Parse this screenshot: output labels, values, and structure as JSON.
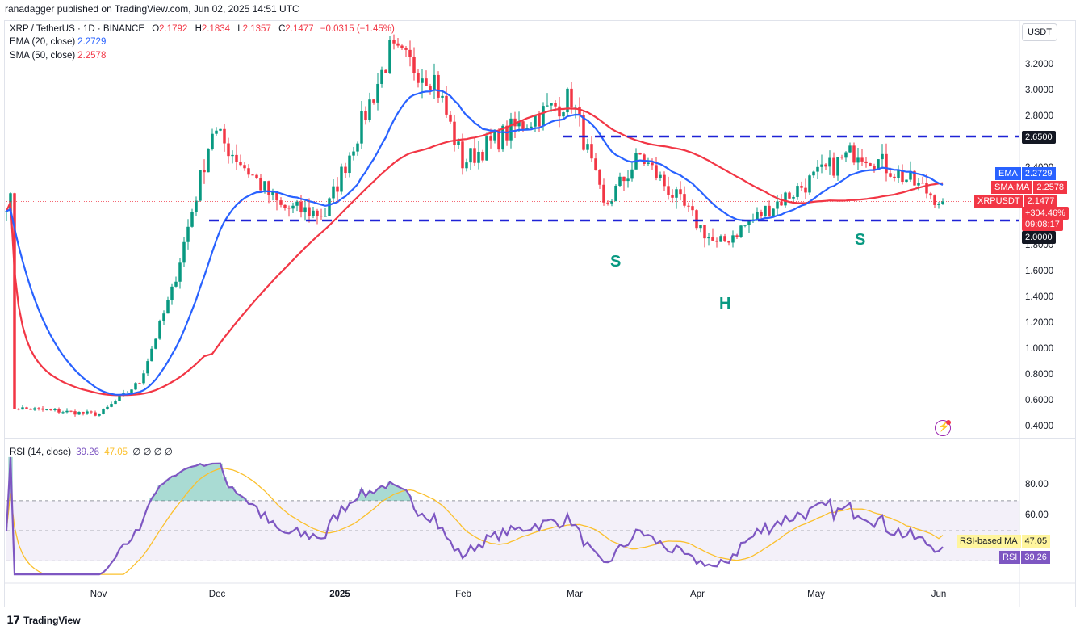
{
  "caption": "ranadagger published on TradingView.com, Jun 02, 2025 14:51 UTC",
  "symbol_line": "XRP / TetherUS · 1D · BINANCE",
  "ohlc": {
    "o_label": "O",
    "o": "2.1792",
    "h_label": "H",
    "h": "2.1834",
    "l_label": "L",
    "l": "2.1357",
    "c_label": "C",
    "c": "2.1477",
    "change": "−0.0315 (−1.45%)"
  },
  "ema_legend": {
    "label": "EMA (20, close)",
    "value": "2.2729"
  },
  "sma_legend": {
    "label": "SMA (50, close)",
    "value": "2.2578"
  },
  "rsi_legend": {
    "label": "RSI (14, close)",
    "v1": "39.26",
    "v2": "47.05",
    "rest": "∅ ∅ ∅ ∅"
  },
  "currency": "USDT",
  "price_ticks": [
    "3.2000",
    "3.0000",
    "2.8000",
    "2.4000",
    "1.8000",
    "1.6000",
    "1.4000",
    "1.2000",
    "1.0000",
    "0.8000",
    "0.6000",
    "0.4000"
  ],
  "rsi_ticks": [
    "80.00",
    "60.00"
  ],
  "tags": {
    "resistance": "2.6500",
    "support": "2.0000",
    "ema_name": "EMA",
    "ema_value": "2.2729",
    "sma_name": "SMA:MA",
    "sma_value": "2.2578",
    "sym_name": "XRPUSDT",
    "sym_value": "2.1477",
    "sym_change": "+304.46%",
    "sym_timer": "09:08:17",
    "rsi_ma_name": "RSI-based MA",
    "rsi_ma_value": "47.05",
    "rsi_name": "RSI",
    "rsi_value": "39.26"
  },
  "time_labels": [
    "Nov",
    "Dec",
    "2025",
    "Feb",
    "Mar",
    "Apr",
    "May",
    "Jun"
  ],
  "pattern_labels": {
    "left_shoulder": "S",
    "head": "H",
    "right_shoulder": "S"
  },
  "brand": "TradingView",
  "colors": {
    "up": "#089981",
    "down": "#f23645",
    "ema": "#2962ff",
    "sma": "#f23645",
    "rsi": "#7e57c2",
    "rsi_ma": "#fbc02d",
    "level": "#1e22d6"
  },
  "chart_data": [
    {
      "type": "candlestick",
      "title": "XRP / TetherUS · 1D · BINANCE",
      "x_range": [
        "2024-10-13",
        "2025-06-02"
      ],
      "ylim": [
        0.3,
        3.4
      ],
      "key_points": [
        {
          "x": "2024-10-15",
          "close": 0.55
        },
        {
          "x": "2024-11-05",
          "close": 0.5
        },
        {
          "x": "2024-11-15",
          "close": 0.75
        },
        {
          "x": "2024-11-23",
          "close": 1.45
        },
        {
          "x": "2024-12-03",
          "close": 2.7
        },
        {
          "x": "2024-12-20",
          "close": 2.1
        },
        {
          "x": "2024-12-31",
          "close": 2.05
        },
        {
          "x": "2025-01-16",
          "close": 3.3
        },
        {
          "x": "2025-01-27",
          "close": 3.1
        },
        {
          "x": "2025-02-03",
          "close": 2.45
        },
        {
          "x": "2025-02-15",
          "close": 2.7
        },
        {
          "x": "2025-03-02",
          "close": 2.95
        },
        {
          "x": "2025-03-10",
          "close": 2.1
        },
        {
          "x": "2025-03-19",
          "close": 2.5
        },
        {
          "x": "2025-04-07",
          "close": 1.8
        },
        {
          "x": "2025-04-20",
          "close": 2.1
        },
        {
          "x": "2025-05-12",
          "close": 2.55
        },
        {
          "x": "2025-05-20",
          "close": 2.4
        },
        {
          "x": "2025-06-02",
          "close": 2.1477
        }
      ],
      "ema20_last": 2.2729,
      "sma50_last": 2.2578,
      "levels": [
        2.65,
        2.0
      ],
      "annotations": [
        "S",
        "H",
        "S"
      ]
    },
    {
      "type": "line",
      "title": "RSI (14, close)",
      "ylim": [
        20,
        100
      ],
      "series": [
        {
          "name": "RSI",
          "last": 39.26
        },
        {
          "name": "RSI-based MA",
          "last": 47.05
        }
      ],
      "bands": [
        70,
        50,
        30
      ]
    }
  ]
}
